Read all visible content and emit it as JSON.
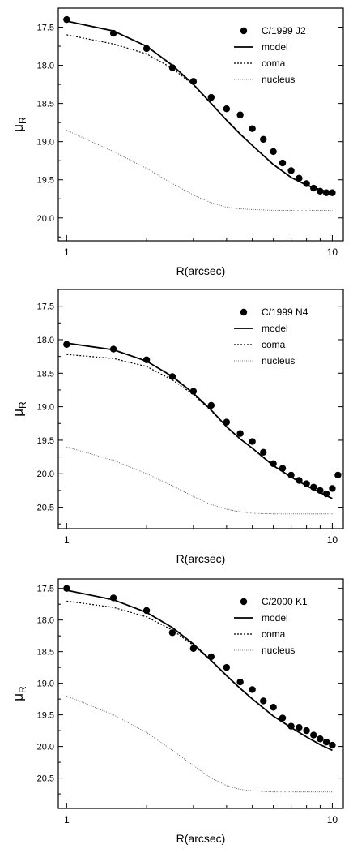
{
  "chart_data": [
    {
      "type": "scatter",
      "title": "",
      "xlabel": "R(arcsec)",
      "ylabel": "μR",
      "xscale": "log",
      "xlim": [
        0.93,
        11.0
      ],
      "ylim": [
        20.3,
        17.25
      ],
      "y_inverted": true,
      "xticks": [
        1,
        10
      ],
      "yticks": [
        17.5,
        18.0,
        18.5,
        19.0,
        19.5,
        20.0
      ],
      "grid": false,
      "legend_position": "top-right",
      "series": [
        {
          "name": "C/1999 J2",
          "style": "points",
          "x": [
            1.0,
            1.5,
            2.0,
            2.5,
            3.0,
            3.5,
            4.0,
            4.5,
            5.0,
            5.5,
            6.0,
            6.5,
            7.0,
            7.5,
            8.0,
            8.5,
            9.0,
            9.5,
            10.0
          ],
          "y": [
            17.4,
            17.58,
            17.78,
            18.03,
            18.21,
            18.42,
            18.57,
            18.65,
            18.83,
            18.97,
            19.13,
            19.28,
            19.38,
            19.48,
            19.55,
            19.61,
            19.65,
            19.67,
            19.67
          ]
        },
        {
          "name": "model",
          "style": "line",
          "x": [
            1.0,
            1.5,
            2.0,
            2.5,
            3.0,
            3.5,
            4.0,
            4.5,
            5.0,
            6.0,
            7.0,
            8.0,
            9.0,
            10.0
          ],
          "y": [
            17.42,
            17.55,
            17.75,
            18.0,
            18.25,
            18.5,
            18.72,
            18.9,
            19.05,
            19.3,
            19.47,
            19.57,
            19.63,
            19.67
          ]
        },
        {
          "name": "coma",
          "style": "dotted",
          "x": [
            1.0,
            1.5,
            2.0,
            2.5,
            3.0,
            3.5,
            4.0,
            4.5,
            5.0,
            6.0,
            7.0,
            8.0,
            9.0,
            10.0
          ],
          "y": [
            17.6,
            17.72,
            17.85,
            18.04,
            18.26,
            18.5,
            18.72,
            18.9,
            19.05,
            19.3,
            19.47,
            19.57,
            19.63,
            19.67
          ]
        },
        {
          "name": "nucleus",
          "style": "dotted",
          "x": [
            1.0,
            1.5,
            2.0,
            2.5,
            3.0,
            3.5,
            4.0,
            4.5,
            5.0,
            6.0,
            7.0,
            8.0,
            9.0,
            10.0
          ],
          "y": [
            18.85,
            19.13,
            19.35,
            19.55,
            19.7,
            19.8,
            19.86,
            19.88,
            19.89,
            19.9,
            19.9,
            19.9,
            19.9,
            19.9
          ]
        }
      ]
    },
    {
      "type": "scatter",
      "title": "",
      "xlabel": "R(arcsec)",
      "ylabel": "μR",
      "xscale": "log",
      "xlim": [
        0.93,
        11.0
      ],
      "ylim": [
        20.82,
        17.25
      ],
      "y_inverted": true,
      "xticks": [
        1,
        10
      ],
      "yticks": [
        17.5,
        18.0,
        18.5,
        19.0,
        19.5,
        20.0,
        20.5
      ],
      "grid": false,
      "legend_position": "top-right",
      "series": [
        {
          "name": "C/1999 N4",
          "style": "points",
          "x": [
            1.0,
            1.5,
            2.0,
            2.5,
            3.0,
            3.5,
            4.0,
            4.5,
            5.0,
            5.5,
            6.0,
            6.5,
            7.0,
            7.5,
            8.0,
            8.5,
            9.0,
            9.5,
            10.0,
            10.5
          ],
          "y": [
            18.07,
            18.14,
            18.3,
            18.55,
            18.77,
            18.98,
            19.23,
            19.4,
            19.52,
            19.68,
            19.85,
            19.92,
            20.02,
            20.1,
            20.15,
            20.2,
            20.25,
            20.3,
            20.22,
            20.02
          ]
        },
        {
          "name": "model",
          "style": "line",
          "x": [
            1.0,
            1.5,
            2.0,
            2.5,
            3.0,
            3.5,
            4.0,
            4.5,
            5.0,
            6.0,
            7.0,
            8.0,
            9.0,
            10.0
          ],
          "y": [
            18.05,
            18.15,
            18.32,
            18.55,
            18.8,
            19.05,
            19.3,
            19.48,
            19.62,
            19.88,
            20.05,
            20.18,
            20.28,
            20.37
          ]
        },
        {
          "name": "coma",
          "style": "dotted",
          "x": [
            1.0,
            1.5,
            2.0,
            2.5,
            3.0,
            3.5,
            4.0,
            4.5,
            5.0,
            6.0,
            7.0,
            8.0,
            9.0,
            10.0
          ],
          "y": [
            18.22,
            18.28,
            18.4,
            18.6,
            18.82,
            19.06,
            19.3,
            19.48,
            19.62,
            19.88,
            20.05,
            20.18,
            20.28,
            20.37
          ]
        },
        {
          "name": "nucleus",
          "style": "dotted",
          "x": [
            1.0,
            1.5,
            2.0,
            2.5,
            3.0,
            3.5,
            4.0,
            4.5,
            5.0,
            6.0,
            7.0,
            8.0,
            9.0,
            10.0
          ],
          "y": [
            19.6,
            19.8,
            20.0,
            20.18,
            20.34,
            20.46,
            20.53,
            20.57,
            20.59,
            20.6,
            20.6,
            20.6,
            20.6,
            20.6
          ]
        }
      ]
    },
    {
      "type": "scatter",
      "title": "",
      "xlabel": "R(arcsec)",
      "ylabel": "μR",
      "xscale": "log",
      "xlim": [
        0.93,
        11.0
      ],
      "ylim": [
        20.98,
        17.35
      ],
      "y_inverted": true,
      "xticks": [
        1,
        10
      ],
      "yticks": [
        17.5,
        18.0,
        18.5,
        19.0,
        19.5,
        20.0,
        20.5
      ],
      "grid": false,
      "legend_position": "top-right",
      "series": [
        {
          "name": "C/2000 K1",
          "style": "points",
          "x": [
            1.0,
            1.5,
            2.0,
            2.5,
            3.0,
            3.5,
            4.0,
            4.5,
            5.0,
            5.5,
            6.0,
            6.5,
            7.0,
            7.5,
            8.0,
            8.5,
            9.0,
            9.5,
            10.0
          ],
          "y": [
            17.5,
            17.65,
            17.85,
            18.2,
            18.45,
            18.58,
            18.75,
            18.98,
            19.1,
            19.28,
            19.38,
            19.55,
            19.68,
            19.7,
            19.75,
            19.82,
            19.88,
            19.93,
            19.98
          ]
        },
        {
          "name": "model",
          "style": "line",
          "x": [
            1.0,
            1.5,
            2.0,
            2.5,
            3.0,
            3.5,
            4.0,
            4.5,
            5.0,
            6.0,
            7.0,
            8.0,
            9.0,
            10.0
          ],
          "y": [
            17.53,
            17.68,
            17.88,
            18.12,
            18.38,
            18.64,
            18.88,
            19.08,
            19.25,
            19.52,
            19.7,
            19.85,
            19.97,
            20.06
          ]
        },
        {
          "name": "coma",
          "style": "dotted",
          "x": [
            1.0,
            1.5,
            2.0,
            2.5,
            3.0,
            3.5,
            4.0,
            4.5,
            5.0,
            6.0,
            7.0,
            8.0,
            9.0,
            10.0
          ],
          "y": [
            17.7,
            17.8,
            17.95,
            18.16,
            18.4,
            18.65,
            18.88,
            19.08,
            19.25,
            19.52,
            19.7,
            19.85,
            19.97,
            20.06
          ]
        },
        {
          "name": "nucleus",
          "style": "dotted",
          "x": [
            1.0,
            1.5,
            2.0,
            2.5,
            3.0,
            3.5,
            4.0,
            4.5,
            5.0,
            6.0,
            7.0,
            8.0,
            9.0,
            10.0
          ],
          "y": [
            19.2,
            19.5,
            19.78,
            20.06,
            20.3,
            20.5,
            20.62,
            20.68,
            20.7,
            20.72,
            20.72,
            20.72,
            20.72,
            20.72
          ]
        }
      ]
    }
  ]
}
